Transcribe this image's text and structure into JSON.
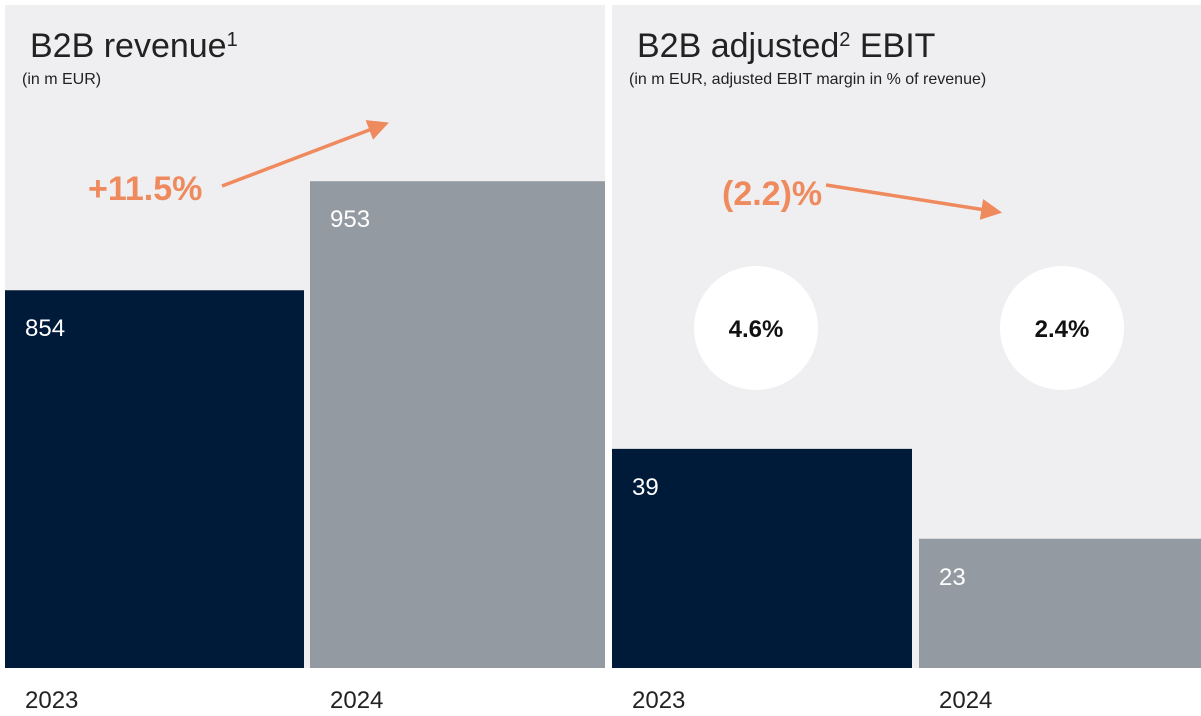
{
  "chart_data": [
    {
      "type": "bar",
      "title": [
        "B2B revenue",
        "1"
      ],
      "subtitle": "(in m EUR)",
      "categories": [
        "2023",
        "2024"
      ],
      "values": [
        854,
        953
      ],
      "colors": [
        "#001a3a",
        "#939aa1"
      ],
      "ylim": [
        511,
        1113
      ],
      "change": 11.5,
      "change_label": "+11.5%",
      "change_color": "#ef8a5e"
    },
    {
      "type": "bar",
      "title": [
        "B2B adjusted",
        "2",
        " EBIT"
      ],
      "subtitle": "(in m EUR, adjusted EBIT margin in % of revenue)",
      "categories": [
        "2023",
        "2024"
      ],
      "values": [
        39,
        23
      ],
      "colors": [
        "#001a3a",
        "#939aa1"
      ],
      "ylim": [
        0,
        118
      ],
      "change": -2.2,
      "change_label": "(2.2)%",
      "change_color": "#ef8a5e",
      "margins": [
        4.6,
        2.4
      ],
      "margin_labels": [
        "4.6%",
        "2.4%"
      ]
    }
  ]
}
